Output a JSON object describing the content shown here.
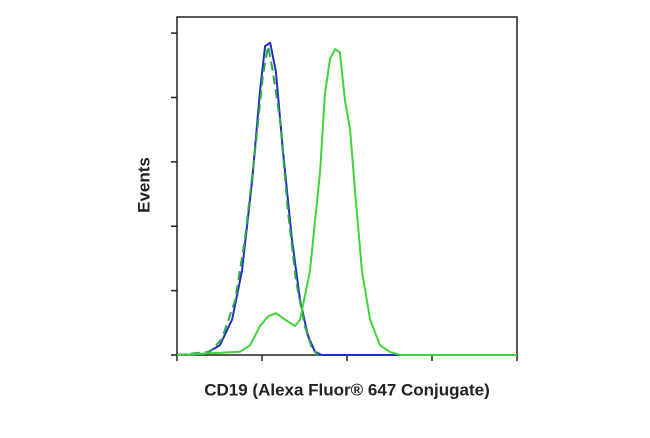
{
  "chart_data": {
    "type": "line",
    "x_label": "CD19 (Alexa Fluor® 647 Conjugate)",
    "y_label": "Events",
    "xlim": [
      0,
      100
    ],
    "ylim": [
      0,
      105
    ],
    "xticks": [
      0,
      25,
      50,
      75,
      100
    ],
    "yticks": [
      0,
      20,
      40,
      60,
      80,
      100
    ],
    "series": [
      {
        "color": "#1f2fbf",
        "dashed": false,
        "x": [
          0,
          8.2,
          12.6,
          16.2,
          19.1,
          22.1,
          24.4,
          25.9,
          27.4,
          29.1,
          31.2,
          33.8,
          36.2,
          38.5,
          40.6,
          42.6,
          100
        ],
        "values": [
          0,
          0.3,
          3,
          11,
          26,
          54,
          82,
          96,
          97,
          88,
          63,
          36,
          17,
          6,
          1,
          0,
          0
        ]
      },
      {
        "color": "#2aa84a",
        "dashed": true,
        "x": [
          0,
          9.7,
          13.2,
          17.1,
          20,
          22.9,
          25.3,
          26.8,
          28.2,
          30.3,
          32.6,
          35,
          37.6,
          39.7,
          41.5
        ],
        "values": [
          0,
          1,
          5,
          17,
          36,
          63,
          87,
          96,
          88,
          73,
          45,
          23,
          9,
          2,
          0
        ]
      },
      {
        "color": "#3fd43a",
        "dashed": false,
        "x": [
          0,
          18.5,
          21.5,
          24.4,
          26.8,
          29.1,
          31.8,
          34.7,
          36.2,
          39.1,
          42.1,
          43.5,
          45,
          46.5,
          47.9,
          49.4,
          50.9,
          52.6,
          54.4,
          56.8,
          59.7,
          62.6,
          65.6,
          100
        ],
        "values": [
          0,
          1,
          3,
          9,
          12,
          13,
          11,
          9,
          11,
          26,
          57,
          81,
          92,
          95,
          94,
          79,
          70,
          48,
          26,
          11,
          3,
          1,
          0,
          0
        ]
      }
    ]
  }
}
